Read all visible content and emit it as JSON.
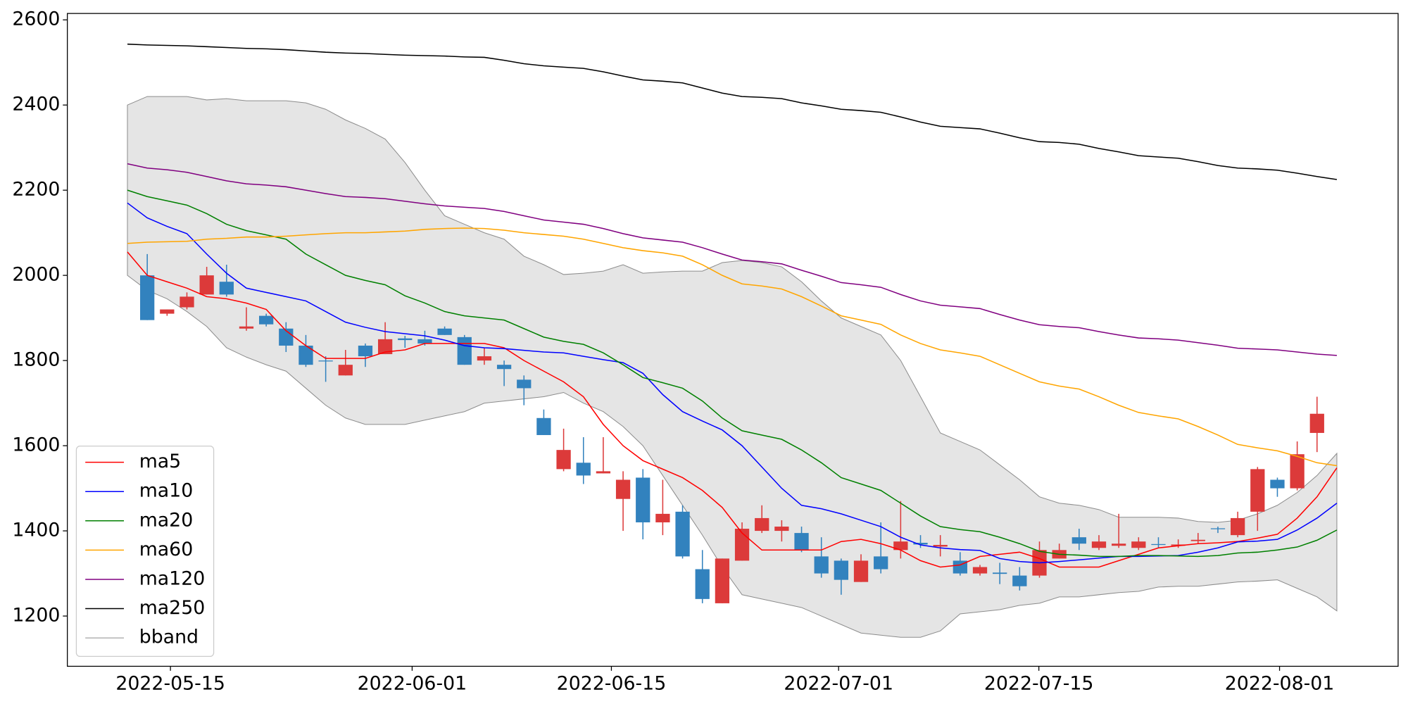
{
  "chart_data": {
    "type": "candlestick",
    "x": [
      0,
      1,
      2,
      3,
      4,
      5,
      6,
      7,
      8,
      9,
      10,
      11,
      12,
      13,
      14,
      15,
      16,
      17,
      18,
      19,
      20,
      21,
      22,
      23,
      24,
      25,
      26,
      27,
      28,
      29,
      30,
      31,
      32,
      33,
      34,
      35,
      36,
      37,
      38,
      39,
      40,
      41,
      42,
      43,
      44,
      45,
      46,
      47,
      48,
      49,
      50,
      51,
      52,
      53,
      54,
      55,
      56,
      57,
      58,
      59,
      60,
      61
    ],
    "xlim": [
      -3.03,
      64.09
    ],
    "xticks": [
      {
        "value": 2.17,
        "label": "2022-05-15"
      },
      {
        "value": 14.36,
        "label": "2022-06-01"
      },
      {
        "value": 24.41,
        "label": "2022-06-15"
      },
      {
        "value": 35.87,
        "label": "2022-07-01"
      },
      {
        "value": 45.97,
        "label": "2022-07-15"
      },
      {
        "value": 58.11,
        "label": "2022-08-01"
      }
    ],
    "ylim": [
      1082,
      2615
    ],
    "yticks": [
      1200,
      1400,
      1600,
      1800,
      2000,
      2200,
      2400,
      2600
    ],
    "legend_loc": "lower left",
    "candles": {
      "up_color": "#dc3a3a",
      "down_color": "#3282be",
      "open": [
        null,
        2000,
        1910,
        1925,
        1955,
        1985,
        1875,
        1905,
        1875,
        1835,
        1800,
        1765,
        1835,
        1815,
        1852,
        1850,
        1875,
        1855,
        1800,
        1790,
        1755,
        1665,
        1545,
        1560,
        1535,
        1475,
        1525,
        1420,
        1445,
        1310,
        1230,
        1330,
        1400,
        1400,
        1395,
        1340,
        1330,
        1280,
        1340,
        1355,
        1372,
        1363,
        1330,
        1300,
        1302,
        1295,
        1295,
        1335,
        1385,
        1360,
        1365,
        1360,
        1369,
        1365,
        1376,
        1406,
        1390,
        1445,
        1520,
        1500,
        1630,
        null
      ],
      "close": [
        null,
        1895,
        1920,
        1950,
        2000,
        1955,
        1880,
        1885,
        1835,
        1790,
        1798,
        1790,
        1810,
        1850,
        1848,
        1840,
        1860,
        1790,
        1810,
        1780,
        1735,
        1625,
        1590,
        1530,
        1540,
        1520,
        1420,
        1440,
        1340,
        1240,
        1335,
        1405,
        1430,
        1410,
        1355,
        1300,
        1285,
        1330,
        1310,
        1375,
        1368,
        1367,
        1300,
        1315,
        1299,
        1270,
        1355,
        1355,
        1370,
        1375,
        1370,
        1375,
        1367,
        1368,
        1379,
        1404,
        1430,
        1545,
        1500,
        1580,
        1675,
        null
      ],
      "high": [
        null,
        2050,
        1920,
        1960,
        2020,
        2025,
        1925,
        1910,
        1890,
        1860,
        1810,
        1825,
        1840,
        1890,
        1858,
        1870,
        1880,
        1860,
        1830,
        1800,
        1765,
        1685,
        1640,
        1620,
        1620,
        1540,
        1545,
        1520,
        1460,
        1355,
        1335,
        1420,
        1460,
        1425,
        1410,
        1385,
        1335,
        1345,
        1420,
        1470,
        1390,
        1390,
        1350,
        1320,
        1325,
        1315,
        1375,
        1370,
        1405,
        1390,
        1440,
        1385,
        1385,
        1380,
        1395,
        1410,
        1445,
        1550,
        1525,
        1610,
        1715,
        null
      ],
      "low": [
        null,
        1895,
        1905,
        1920,
        1955,
        1950,
        1870,
        1880,
        1820,
        1785,
        1750,
        1765,
        1785,
        1815,
        1830,
        1835,
        1860,
        1790,
        1790,
        1740,
        1695,
        1625,
        1540,
        1510,
        1535,
        1400,
        1380,
        1390,
        1335,
        1230,
        1230,
        1330,
        1395,
        1375,
        1350,
        1290,
        1250,
        1280,
        1300,
        1335,
        1360,
        1340,
        1295,
        1295,
        1275,
        1260,
        1290,
        1335,
        1355,
        1355,
        1360,
        1355,
        1360,
        1360,
        1370,
        1395,
        1385,
        1400,
        1480,
        1495,
        1585,
        null
      ]
    },
    "series": [
      {
        "name": "ma5",
        "color": "red",
        "values": [
          2055,
          2000,
          1985,
          1970,
          1950,
          1945,
          1935,
          1920,
          1870,
          1835,
          1805,
          1805,
          1805,
          1820,
          1825,
          1840,
          1840,
          1840,
          1840,
          1830,
          1800,
          1775,
          1750,
          1715,
          1650,
          1600,
          1565,
          1545,
          1525,
          1495,
          1455,
          1395,
          1355,
          1355,
          1355,
          1355,
          1375,
          1380,
          1370,
          1355,
          1330,
          1315,
          1320,
          1340,
          1345,
          1350,
          1335,
          1315,
          1315,
          1315,
          1330,
          1345,
          1360,
          1365,
          1370,
          1372,
          1375,
          1383,
          1392,
          1430,
          1480,
          1548
        ]
      },
      {
        "name": "ma10",
        "color": "blue",
        "values": [
          2170,
          2135,
          2115,
          2098,
          2050,
          2005,
          1970,
          1960,
          1950,
          1940,
          1915,
          1890,
          1878,
          1868,
          1863,
          1858,
          1848,
          1835,
          1830,
          1828,
          1824,
          1820,
          1818,
          1810,
          1802,
          1795,
          1770,
          1720,
          1680,
          1658,
          1637,
          1600,
          1550,
          1500,
          1460,
          1452,
          1440,
          1425,
          1410,
          1385,
          1367,
          1360,
          1356,
          1354,
          1335,
          1328,
          1325,
          1328,
          1332,
          1336,
          1340,
          1340,
          1341,
          1342,
          1350,
          1360,
          1374,
          1376,
          1380,
          1402,
          1430,
          1465
        ]
      },
      {
        "name": "ma20",
        "color": "green",
        "values": [
          2200,
          2185,
          2175,
          2165,
          2145,
          2120,
          2105,
          2095,
          2085,
          2050,
          2025,
          2000,
          1988,
          1978,
          1952,
          1935,
          1915,
          1905,
          1900,
          1895,
          1875,
          1855,
          1845,
          1838,
          1818,
          1790,
          1760,
          1748,
          1735,
          1705,
          1665,
          1635,
          1625,
          1615,
          1590,
          1560,
          1525,
          1510,
          1495,
          1465,
          1435,
          1410,
          1403,
          1398,
          1385,
          1370,
          1352,
          1345,
          1343,
          1340,
          1340,
          1342,
          1342,
          1341,
          1340,
          1342,
          1348,
          1350,
          1355,
          1362,
          1378,
          1402
        ]
      },
      {
        "name": "ma60",
        "color": "orange",
        "values": [
          2075,
          2078,
          2079,
          2080,
          2085,
          2087,
          2090,
          2090,
          2092,
          2095,
          2098,
          2100,
          2100,
          2102,
          2104,
          2108,
          2110,
          2111,
          2110,
          2106,
          2100,
          2096,
          2092,
          2085,
          2075,
          2065,
          2058,
          2053,
          2045,
          2025,
          2000,
          1980,
          1975,
          1968,
          1950,
          1928,
          1905,
          1895,
          1885,
          1860,
          1840,
          1825,
          1818,
          1810,
          1790,
          1770,
          1750,
          1740,
          1733,
          1715,
          1695,
          1678,
          1670,
          1663,
          1645,
          1625,
          1603,
          1595,
          1588,
          1575,
          1560,
          1553
        ]
      },
      {
        "name": "ma120",
        "color": "purple",
        "values": [
          2262,
          2252,
          2248,
          2242,
          2232,
          2222,
          2215,
          2212,
          2208,
          2200,
          2192,
          2185,
          2183,
          2180,
          2174,
          2168,
          2163,
          2160,
          2157,
          2150,
          2140,
          2130,
          2125,
          2120,
          2110,
          2098,
          2088,
          2083,
          2078,
          2065,
          2050,
          2036,
          2032,
          2027,
          2012,
          1998,
          1983,
          1978,
          1972,
          1955,
          1940,
          1930,
          1926,
          1922,
          1908,
          1895,
          1884,
          1880,
          1877,
          1868,
          1860,
          1853,
          1851,
          1848,
          1842,
          1836,
          1829,
          1827,
          1825,
          1820,
          1815,
          1812
        ]
      },
      {
        "name": "ma250",
        "color": "black",
        "values": [
          2543,
          2541,
          2540,
          2539,
          2537,
          2535,
          2533,
          2532,
          2530,
          2527,
          2524,
          2522,
          2521,
          2519,
          2517,
          2516,
          2515,
          2513,
          2512,
          2505,
          2497,
          2492,
          2489,
          2486,
          2478,
          2468,
          2459,
          2456,
          2452,
          2440,
          2428,
          2420,
          2418,
          2415,
          2405,
          2398,
          2390,
          2387,
          2383,
          2372,
          2360,
          2350,
          2347,
          2344,
          2334,
          2323,
          2314,
          2312,
          2308,
          2298,
          2290,
          2281,
          2278,
          2275,
          2267,
          2258,
          2252,
          2250,
          2247,
          2240,
          2232,
          2225
        ]
      }
    ],
    "band": {
      "name": "bband",
      "color": "#8c8c8c",
      "fill": "#e5e5e5",
      "upper": [
        2400,
        2420,
        2420,
        2420,
        2412,
        2415,
        2410,
        2410,
        2410,
        2405,
        2390,
        2365,
        2345,
        2320,
        2265,
        2200,
        2140,
        2120,
        2100,
        2085,
        2045,
        2025,
        2002,
        2005,
        2010,
        2025,
        2005,
        2008,
        2010,
        2010,
        2030,
        2035,
        2030,
        2020,
        1985,
        1940,
        1900,
        1880,
        1860,
        1800,
        1715,
        1630,
        1610,
        1590,
        1555,
        1520,
        1480,
        1465,
        1460,
        1450,
        1432,
        1432,
        1432,
        1430,
        1422,
        1420,
        1425,
        1440,
        1460,
        1490,
        1530,
        1582
      ],
      "lower": [
        2000,
        1965,
        1945,
        1915,
        1880,
        1830,
        1808,
        1790,
        1775,
        1735,
        1695,
        1665,
        1650,
        1650,
        1650,
        1660,
        1670,
        1680,
        1700,
        1705,
        1710,
        1715,
        1725,
        1700,
        1680,
        1645,
        1600,
        1530,
        1460,
        1390,
        1315,
        1250,
        1240,
        1230,
        1220,
        1200,
        1180,
        1160,
        1155,
        1150,
        1150,
        1165,
        1205,
        1210,
        1215,
        1225,
        1230,
        1245,
        1245,
        1250,
        1255,
        1258,
        1268,
        1270,
        1270,
        1275,
        1280,
        1282,
        1285,
        1265,
        1245,
        1212
      ]
    }
  }
}
